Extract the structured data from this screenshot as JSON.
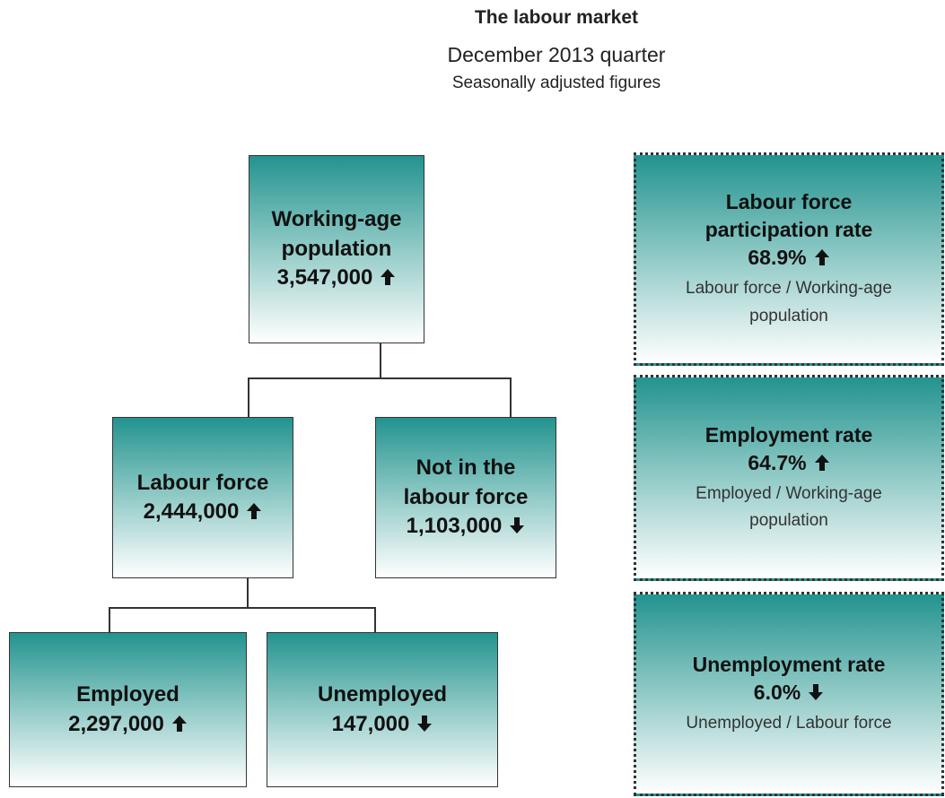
{
  "header": {
    "title": "The labour market",
    "subtitle": "December 2013 quarter",
    "note": "Seasonally adjusted figures"
  },
  "nodes": [
    {
      "label": "Working-age population",
      "value": "3,547,000",
      "trend": "up"
    },
    {
      "label": "Labour force",
      "value": "2,444,000",
      "trend": "up"
    },
    {
      "label": "Not in the labour force",
      "value": "1,103,000",
      "trend": "down"
    },
    {
      "label": "Employed",
      "value": "2,297,000",
      "trend": "up"
    },
    {
      "label": "Unemployed",
      "value": "147,000",
      "trend": "down"
    }
  ],
  "rates": [
    {
      "label": "Labour force participation rate",
      "value": "68.9%",
      "trend": "up",
      "formula": "Labour force / Working-age population"
    },
    {
      "label": "Employment rate",
      "value": "64.7%",
      "trend": "up",
      "formula": "Employed / Working-age population"
    },
    {
      "label": "Unemployment rate",
      "value": "6.0%",
      "trend": "down",
      "formula": "Unemployed / Labour force"
    }
  ]
}
